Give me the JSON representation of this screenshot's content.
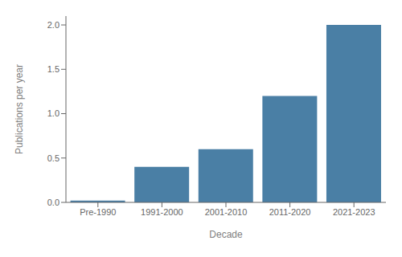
{
  "chart_data": {
    "type": "bar",
    "categories": [
      "Pre-1990",
      "1991-2000",
      "2001-2010",
      "2011-2020",
      "2021-2023"
    ],
    "values": [
      0.02,
      0.4,
      0.6,
      1.2,
      2.0
    ],
    "color": "#4a7fa5",
    "xlabel": "Decade",
    "ylabel": "Publications per year",
    "ylim": [
      0,
      2.1
    ],
    "yticks": [
      {
        "value": 0,
        "label": "0.0"
      },
      0.5,
      {
        "value": 1,
        "label": "1.0"
      },
      1.5,
      {
        "value": 2,
        "label": "2.0"
      }
    ],
    "grid": false
  }
}
